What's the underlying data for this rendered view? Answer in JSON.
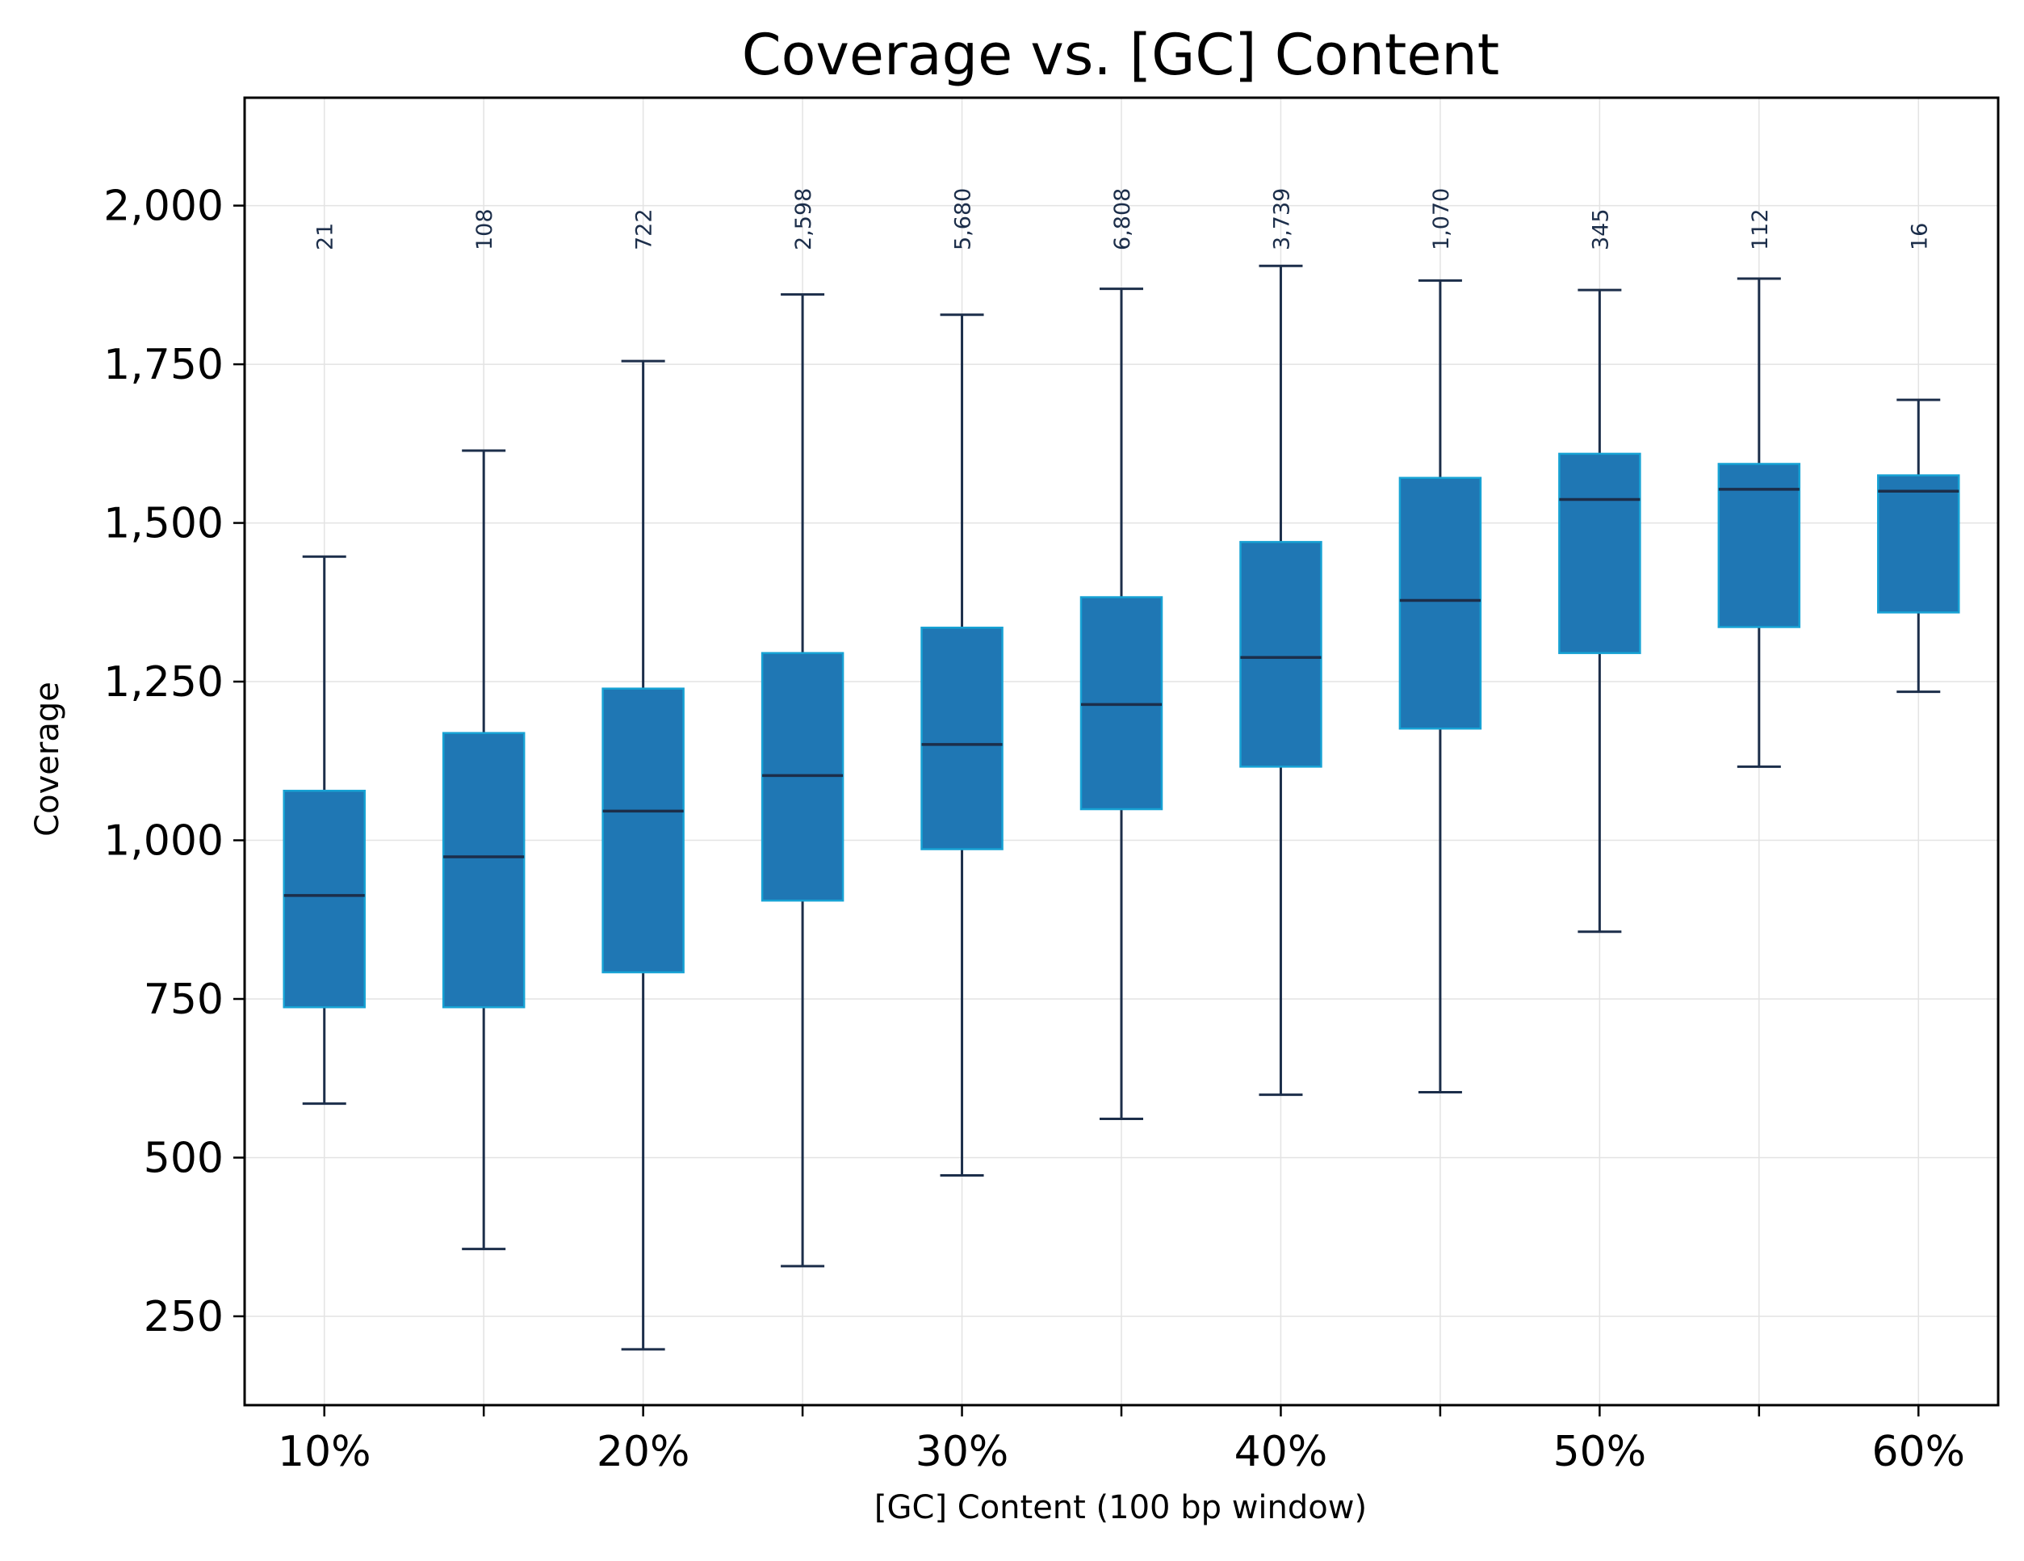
{
  "chart_data": {
    "type": "box",
    "title": "Coverage vs. [GC] Content",
    "xlabel": "[GC] Content (100 bp window)",
    "ylabel": "Coverage",
    "ylim": [
      110,
      2170
    ],
    "yticks": [
      250,
      500,
      750,
      1000,
      1250,
      1500,
      1750,
      2000
    ],
    "ytick_labels": [
      "250",
      "500",
      "750",
      "1,000",
      "1,250",
      "1,500",
      "1,750",
      "2,000"
    ],
    "x_positions": [
      10,
      15,
      20,
      25,
      30,
      35,
      40,
      45,
      50,
      55,
      60
    ],
    "xlim": [
      7.5,
      62.5
    ],
    "xtick_labels": [
      {
        "x": 10,
        "label": "10%"
      },
      {
        "x": 20,
        "label": "20%"
      },
      {
        "x": 30,
        "label": "30%"
      },
      {
        "x": 40,
        "label": "40%"
      },
      {
        "x": 50,
        "label": "50%"
      },
      {
        "x": 60,
        "label": "60%"
      }
    ],
    "grid": true,
    "box_fill": "#1f77b4",
    "box_edge": "#17a2d4",
    "line_color": "#1c2e4a",
    "boxes": [
      {
        "x": 10,
        "whisker_low": 585,
        "q1": 737,
        "median": 913,
        "q3": 1078,
        "whisker_high": 1447,
        "count": "21"
      },
      {
        "x": 15,
        "whisker_low": 356,
        "q1": 737,
        "median": 974,
        "q3": 1169,
        "whisker_high": 1614,
        "count": "108"
      },
      {
        "x": 20,
        "whisker_low": 198,
        "q1": 792,
        "median": 1046,
        "q3": 1239,
        "whisker_high": 1755,
        "count": "722"
      },
      {
        "x": 25,
        "whisker_low": 329,
        "q1": 905,
        "median": 1102,
        "q3": 1295,
        "whisker_high": 1860,
        "count": "2,598"
      },
      {
        "x": 30,
        "whisker_low": 472,
        "q1": 986,
        "median": 1151,
        "q3": 1335,
        "whisker_high": 1828,
        "count": "5,680"
      },
      {
        "x": 35,
        "whisker_low": 561,
        "q1": 1049,
        "median": 1214,
        "q3": 1383,
        "whisker_high": 1869,
        "count": "6,808"
      },
      {
        "x": 40,
        "whisker_low": 599,
        "q1": 1116,
        "median": 1288,
        "q3": 1470,
        "whisker_high": 1905,
        "count": "3,739"
      },
      {
        "x": 45,
        "whisker_low": 603,
        "q1": 1176,
        "median": 1378,
        "q3": 1571,
        "whisker_high": 1882,
        "count": "1,070"
      },
      {
        "x": 50,
        "whisker_low": 856,
        "q1": 1295,
        "median": 1537,
        "q3": 1609,
        "whisker_high": 1867,
        "count": "345"
      },
      {
        "x": 55,
        "whisker_low": 1116,
        "q1": 1336,
        "median": 1553,
        "q3": 1593,
        "whisker_high": 1885,
        "count": "112"
      },
      {
        "x": 60,
        "whisker_low": 1234,
        "q1": 1359,
        "median": 1550,
        "q3": 1575,
        "whisker_high": 1694,
        "count": "16"
      }
    ]
  }
}
